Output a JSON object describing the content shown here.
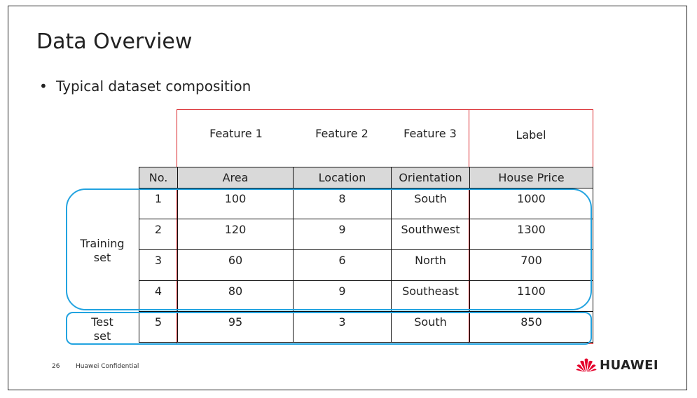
{
  "slide": {
    "title": "Data Overview",
    "bullet": "Typical dataset composition",
    "page_number": "26",
    "footer": "Huawei Confidential",
    "brand": "HUAWEI"
  },
  "feature_labels": [
    "Feature 1",
    "Feature 2",
    "Feature 3"
  ],
  "label_header": "Label",
  "table": {
    "headers": [
      "No.",
      "Area",
      "Location",
      "Orientation",
      "House Price"
    ],
    "rows": [
      [
        "1",
        "100",
        "8",
        "South",
        "1000"
      ],
      [
        "2",
        "120",
        "9",
        "Southwest",
        "1300"
      ],
      [
        "3",
        "60",
        "6",
        "North",
        "700"
      ],
      [
        "4",
        "80",
        "9",
        "Southeast",
        "1100"
      ],
      [
        "5",
        "95",
        "3",
        "South",
        "850"
      ]
    ]
  },
  "groups": {
    "training": "Training\nset",
    "test": "Test\nset"
  },
  "colors": {
    "feature_outline": "#d9252a",
    "group_outline": "#22a3e0",
    "header_fill": "#d9d9d9",
    "logo_red": "#e4002b"
  }
}
